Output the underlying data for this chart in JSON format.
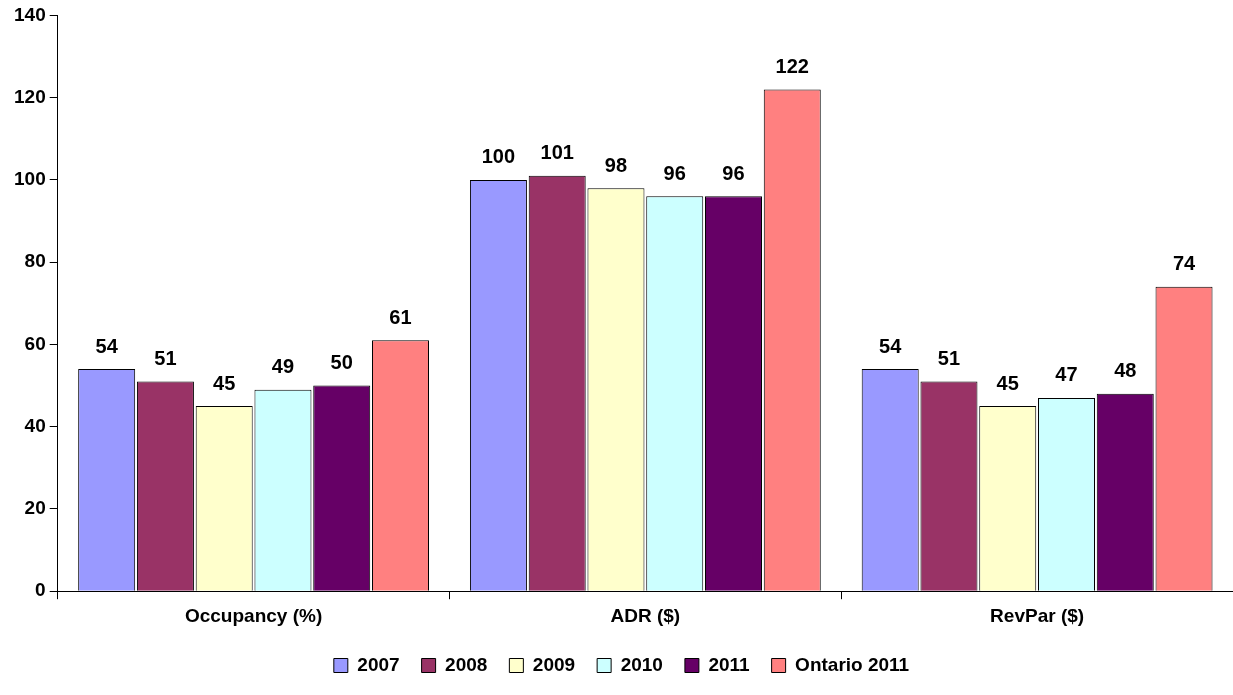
{
  "chart_data": {
    "type": "bar",
    "categories": [
      "Occupancy (%)",
      "ADR ($)",
      "RevPar ($)"
    ],
    "series": [
      {
        "name": "2007",
        "color": "#9999ff",
        "values": [
          54,
          100,
          54
        ]
      },
      {
        "name": "2008",
        "color": "#993366",
        "values": [
          51,
          101,
          51
        ]
      },
      {
        "name": "2009",
        "color": "#ffffcc",
        "values": [
          45,
          98,
          45
        ]
      },
      {
        "name": "2010",
        "color": "#ccffff",
        "values": [
          49,
          96,
          47
        ]
      },
      {
        "name": "2011",
        "color": "#660066",
        "values": [
          50,
          96,
          48
        ]
      },
      {
        "name": "Ontario 2011",
        "color": "#ff8080",
        "values": [
          61,
          122,
          74
        ]
      }
    ],
    "ylim": [
      0,
      140
    ],
    "yticks": [
      0,
      20,
      40,
      60,
      80,
      100,
      120,
      140
    ],
    "grid": false,
    "legend": "bottom",
    "data_labels": true
  }
}
